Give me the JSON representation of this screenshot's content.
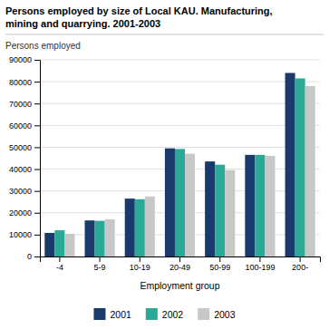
{
  "chart_data": {
    "type": "bar",
    "title": "Persons employed by size of Local KAU. Manufacturing,",
    "subtitle": "mining and quarrying. 2001-2003",
    "y_label": "Persons employed",
    "x_label": "Employment group",
    "categories": [
      "-4",
      "5-9",
      "10-19",
      "20-49",
      "50-99",
      "100-199",
      "200-"
    ],
    "series": [
      {
        "name": "2001",
        "color": "#1a3a6b",
        "values": [
          10800,
          16500,
          26500,
          49500,
          43500,
          46500,
          84000
        ]
      },
      {
        "name": "2002",
        "color": "#2aaa96",
        "values": [
          12000,
          16300,
          26200,
          49200,
          42000,
          46500,
          81500
        ]
      },
      {
        "name": "2003",
        "color": "#c8c8c8",
        "values": [
          10400,
          17000,
          27500,
          47000,
          39500,
          46000,
          78000
        ]
      }
    ],
    "ylim": [
      0,
      90000
    ],
    "yticks": [
      0,
      10000,
      20000,
      30000,
      40000,
      50000,
      60000,
      70000,
      80000,
      90000
    ],
    "grid": true,
    "legend": "bottom"
  }
}
